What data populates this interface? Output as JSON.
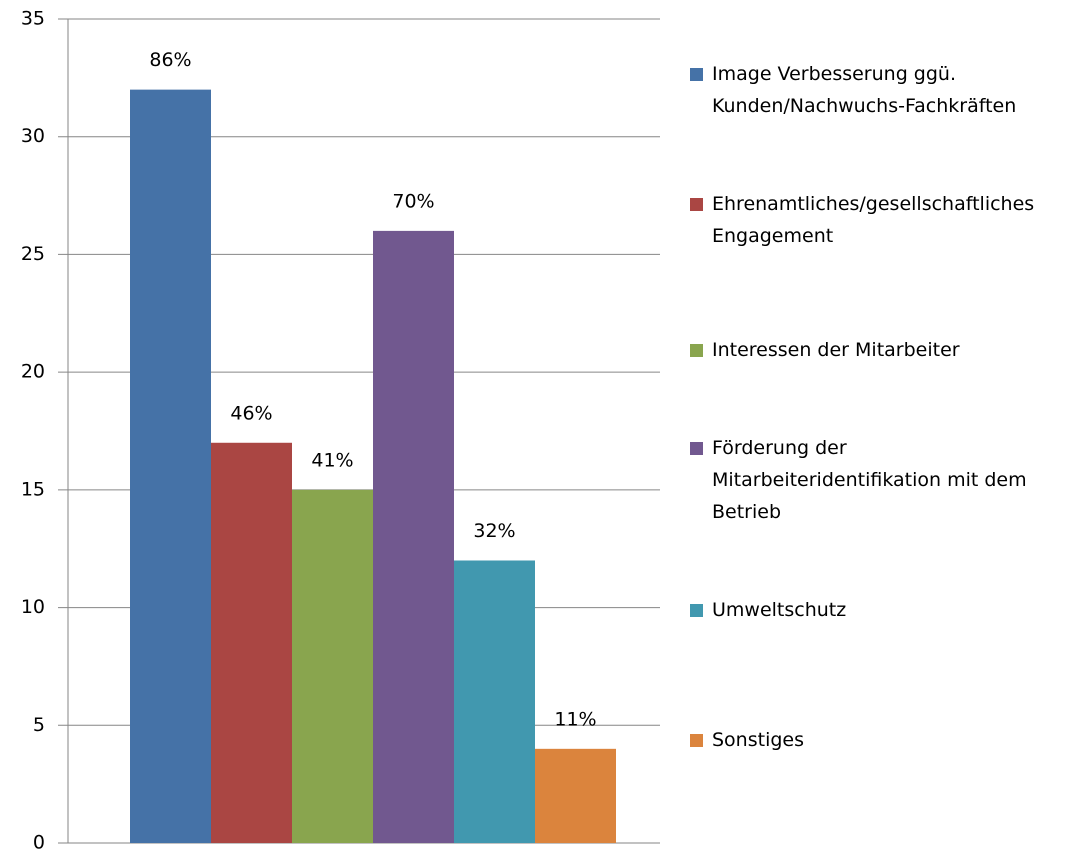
{
  "chart_data": {
    "type": "bar",
    "categories": [
      null
    ],
    "series": [
      {
        "name": "Image Verbesserung ggü. Kunden/Nachwuchs-Fachkräften",
        "color": "#4572a7",
        "values": [
          32
        ],
        "data_label": "86%"
      },
      {
        "name": "Ehrenamtliches/gesellschaftliches Engagement",
        "color": "#aa4643",
        "values": [
          17
        ],
        "data_label": "46%"
      },
      {
        "name": "Interessen der Mitarbeiter",
        "color": "#89a54e",
        "values": [
          15
        ],
        "data_label": "41%"
      },
      {
        "name": "Förderung der Mitarbeiteridentifikation mit dem Betrieb",
        "color": "#71588f",
        "values": [
          26
        ],
        "data_label": "70%"
      },
      {
        "name": "Umweltschutz",
        "color": "#4198af",
        "values": [
          12
        ],
        "data_label": "32%"
      },
      {
        "name": "Sonstiges",
        "color": "#db843d",
        "values": [
          4
        ],
        "data_label": "11%"
      }
    ],
    "ylim": [
      0,
      35
    ],
    "yticks": [
      0,
      5,
      10,
      15,
      20,
      25,
      30,
      35
    ],
    "grid": true,
    "legend": "right"
  }
}
